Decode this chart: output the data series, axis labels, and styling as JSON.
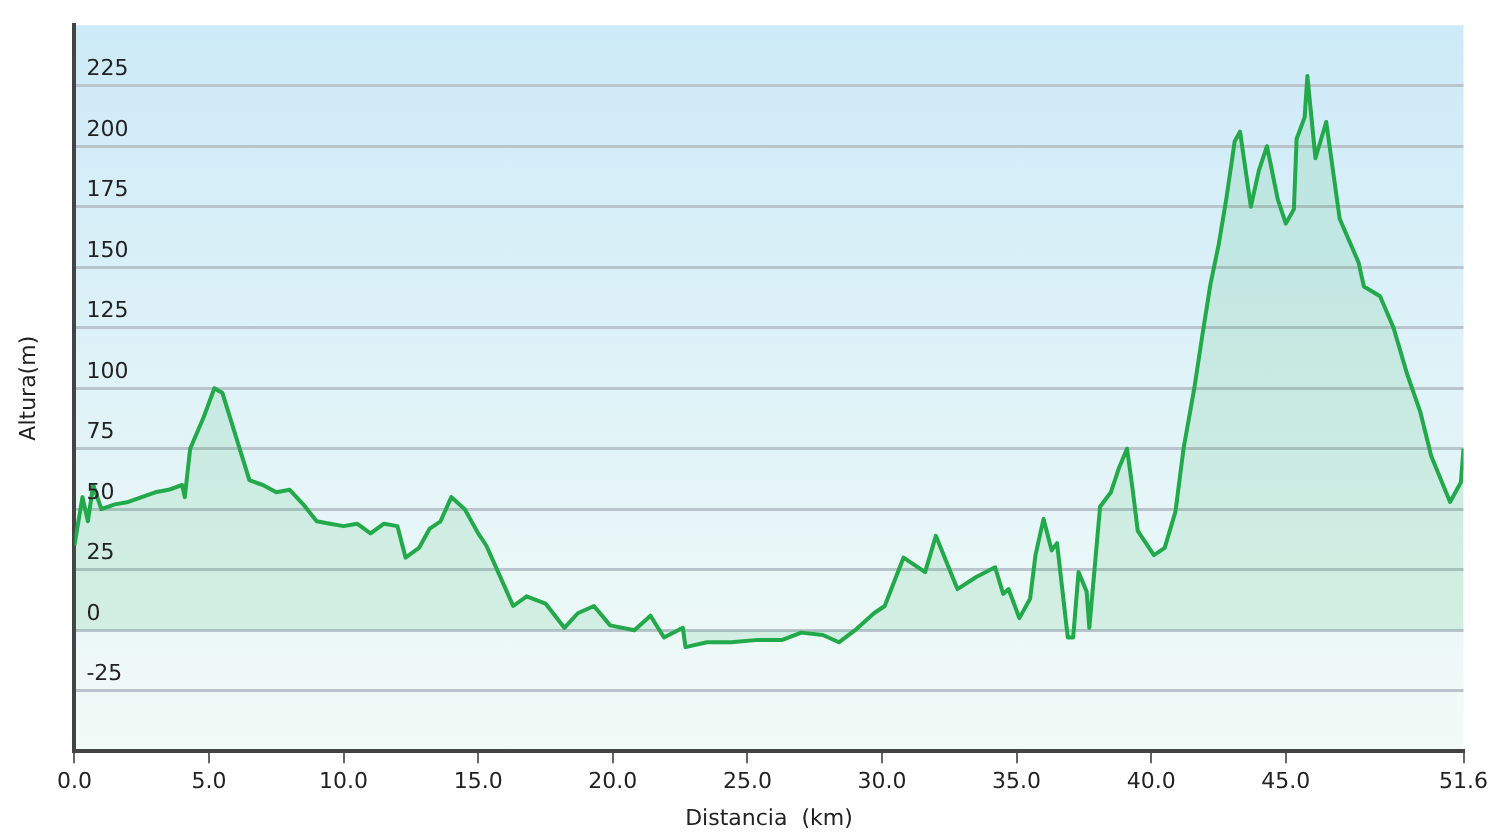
{
  "chart_data": {
    "type": "area",
    "xlabel": "Distancia  (km)",
    "ylabel": "Altura(m)",
    "xlim": [
      0,
      51.6
    ],
    "xticks": [
      {
        "value": 0,
        "label": "0.0"
      },
      {
        "value": 5,
        "label": "5.0"
      },
      {
        "value": 10,
        "label": "10.0"
      },
      {
        "value": 15,
        "label": "15.0"
      },
      {
        "value": 20,
        "label": "20.0"
      },
      {
        "value": 25,
        "label": "25.0"
      },
      {
        "value": 30,
        "label": "30.0"
      },
      {
        "value": 35,
        "label": "35.0"
      },
      {
        "value": 40,
        "label": "40.0"
      },
      {
        "value": 45,
        "label": "45.0"
      },
      {
        "value": 51.6,
        "label": "51.6"
      }
    ],
    "ylim": [
      -50,
      250
    ],
    "yticks": [
      -25,
      0,
      25,
      50,
      75,
      100,
      125,
      150,
      175,
      200,
      225
    ],
    "grid": "y",
    "legend": false,
    "marker": "none",
    "line_style": "solid",
    "x": [
      0,
      0.3,
      0.5,
      0.7,
      1.0,
      1.5,
      2.0,
      3.0,
      3.5,
      4.0,
      4.1,
      4.3,
      4.8,
      5.2,
      5.5,
      6.0,
      6.5,
      7.0,
      7.5,
      8.0,
      8.5,
      9.0,
      9.5,
      10.0,
      10.5,
      11.0,
      11.5,
      12.0,
      12.3,
      12.8,
      13.2,
      13.6,
      14.0,
      14.5,
      15.0,
      15.3,
      16.3,
      16.8,
      17.5,
      18.2,
      18.7,
      19.3,
      19.9,
      20.8,
      21.4,
      21.9,
      22.6,
      22.7,
      23.5,
      24.4,
      25.4,
      26.3,
      27.0,
      27.8,
      28.4,
      29.0,
      29.7,
      30.1,
      30.8,
      31.6,
      32.0,
      32.8,
      33.5,
      34.2,
      34.5,
      34.7,
      35.1,
      35.5,
      35.7,
      36.0,
      36.3,
      36.5,
      36.9,
      37.1,
      37.3,
      37.6,
      37.7,
      38.1,
      38.5,
      38.8,
      39.1,
      39.3,
      39.5,
      40.1,
      40.5,
      40.9,
      41.2,
      41.6,
      41.9,
      42.2,
      42.5,
      42.8,
      43.1,
      43.3,
      43.7,
      44.0,
      44.3,
      44.7,
      45.0,
      45.3,
      45.4,
      45.7,
      45.8,
      46.1,
      46.5,
      47.0,
      47.7,
      47.9,
      48.5,
      49.0,
      49.5,
      50.0,
      50.4,
      51.1,
      51.5,
      51.6
    ],
    "series": [
      {
        "color": "#22a94a",
        "values": [
          35,
          55,
          45,
          60,
          50,
          52,
          53,
          57,
          58,
          60,
          55,
          75,
          88,
          100,
          98,
          80,
          62,
          60,
          57,
          58,
          52,
          45,
          44,
          43,
          44,
          40,
          44,
          43,
          30,
          34,
          42,
          45,
          55,
          50,
          40,
          35,
          10,
          14,
          11,
          1,
          7,
          10,
          2,
          0,
          6,
          -3,
          1,
          -7,
          -5,
          -5,
          -4,
          -4,
          -1,
          -2,
          -5,
          0,
          7,
          10,
          30,
          24,
          39,
          17,
          22,
          26,
          15,
          17,
          5,
          13,
          31,
          46,
          33,
          36,
          -3,
          -3,
          24,
          16,
          1,
          51,
          57,
          67,
          75,
          59,
          41,
          31,
          34,
          49,
          75,
          100,
          122,
          143,
          159,
          179,
          202,
          206,
          175,
          190,
          200,
          178,
          168,
          174,
          203,
          212,
          229,
          195,
          210,
          170,
          152,
          142,
          138,
          125,
          106,
          90,
          72,
          53,
          61,
          75
        ]
      }
    ]
  }
}
